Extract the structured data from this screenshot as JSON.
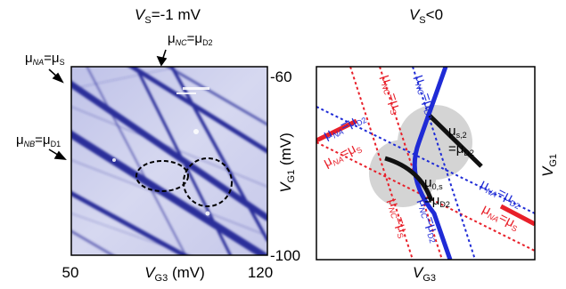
{
  "left_panel": {
    "title": {
      "v": "V",
      "sub": "S",
      "rest": "=-1 mV"
    },
    "label_na": {
      "mu": "μ",
      "sub1": "NA",
      "eq": "=μ",
      "sub2": "S"
    },
    "label_nc": {
      "mu": "μ",
      "sub1": "NC",
      "eq": "=μ",
      "sub2": "D2"
    },
    "label_nb": {
      "mu": "μ",
      "sub1": "NB",
      "eq": "=μ",
      "sub2": "D1"
    },
    "x_tick_left": "50",
    "x_tick_right": "120",
    "y_tick_top": "-60",
    "y_tick_bottom": "-100",
    "xlabel": {
      "v": "V",
      "sub": "G3",
      "rest": " (mV)"
    },
    "ylabel": {
      "v": "V",
      "sub": "G1",
      "rest": " (mV)"
    }
  },
  "right_panel": {
    "title": {
      "v": "V",
      "sub": "S",
      "rest": "<0"
    },
    "xlabel": {
      "v": "V",
      "sub": "G3"
    },
    "ylabel": {
      "v": "V",
      "sub": "G1"
    },
    "point_s2": {
      "mu": "μ",
      "sub": "s,2",
      "line2": "=μ",
      "sub2": "D2"
    },
    "point_0s": {
      "mu": "μ",
      "sub": "0,s",
      "line2": "=μ",
      "sub2": "D2"
    },
    "lab_na_d2": {
      "mu": "μ",
      "sub1": "NA",
      "eq": "=μ",
      "sub2": "D2"
    },
    "lab_na_s": {
      "mu": "μ",
      "sub1": "NA",
      "eq": "=μ",
      "sub2": "S"
    },
    "lab_nc_s": {
      "mu": "μ",
      "sub1": "NC",
      "eq": "=μ",
      "sub2": "S"
    },
    "lab_nc_d2": {
      "mu": "μ",
      "sub1": "NC",
      "eq": "=μ",
      "sub2": "D2"
    }
  },
  "colors": {
    "red": "#e8202a",
    "blue": "#1f2bd6",
    "black": "#111111",
    "grey": "#d4d4d4",
    "plot_blue": "#2b2f9a"
  }
}
